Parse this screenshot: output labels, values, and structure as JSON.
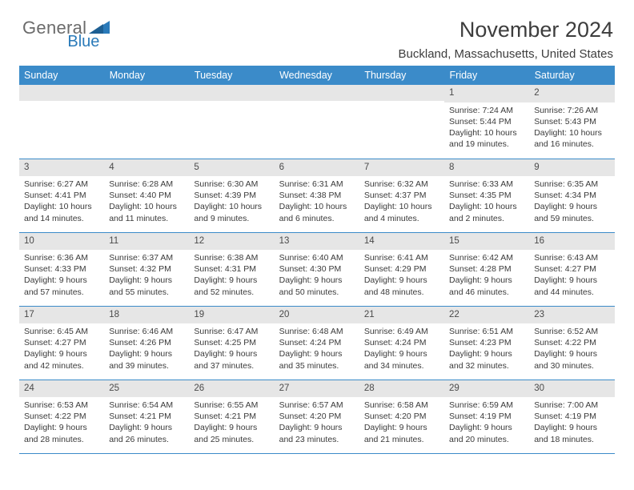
{
  "brand": {
    "part1": "General",
    "part2": "Blue"
  },
  "title": "November 2024",
  "location": "Buckland, Massachusetts, United States",
  "weekdays": [
    "Sunday",
    "Monday",
    "Tuesday",
    "Wednesday",
    "Thursday",
    "Friday",
    "Saturday"
  ],
  "styling": {
    "header_bg": "#3b8bc9",
    "header_fg": "#ffffff",
    "daynum_bg": "#e6e6e6",
    "border_color": "#3b8bc9",
    "body_fontsize": 10.5,
    "title_fontsize": 27
  },
  "weeks": [
    [
      null,
      null,
      null,
      null,
      null,
      {
        "n": "1",
        "sr": "7:24 AM",
        "ss": "5:44 PM",
        "dl": "10 hours and 19 minutes."
      },
      {
        "n": "2",
        "sr": "7:26 AM",
        "ss": "5:43 PM",
        "dl": "10 hours and 16 minutes."
      }
    ],
    [
      {
        "n": "3",
        "sr": "6:27 AM",
        "ss": "4:41 PM",
        "dl": "10 hours and 14 minutes."
      },
      {
        "n": "4",
        "sr": "6:28 AM",
        "ss": "4:40 PM",
        "dl": "10 hours and 11 minutes."
      },
      {
        "n": "5",
        "sr": "6:30 AM",
        "ss": "4:39 PM",
        "dl": "10 hours and 9 minutes."
      },
      {
        "n": "6",
        "sr": "6:31 AM",
        "ss": "4:38 PM",
        "dl": "10 hours and 6 minutes."
      },
      {
        "n": "7",
        "sr": "6:32 AM",
        "ss": "4:37 PM",
        "dl": "10 hours and 4 minutes."
      },
      {
        "n": "8",
        "sr": "6:33 AM",
        "ss": "4:35 PM",
        "dl": "10 hours and 2 minutes."
      },
      {
        "n": "9",
        "sr": "6:35 AM",
        "ss": "4:34 PM",
        "dl": "9 hours and 59 minutes."
      }
    ],
    [
      {
        "n": "10",
        "sr": "6:36 AM",
        "ss": "4:33 PM",
        "dl": "9 hours and 57 minutes."
      },
      {
        "n": "11",
        "sr": "6:37 AM",
        "ss": "4:32 PM",
        "dl": "9 hours and 55 minutes."
      },
      {
        "n": "12",
        "sr": "6:38 AM",
        "ss": "4:31 PM",
        "dl": "9 hours and 52 minutes."
      },
      {
        "n": "13",
        "sr": "6:40 AM",
        "ss": "4:30 PM",
        "dl": "9 hours and 50 minutes."
      },
      {
        "n": "14",
        "sr": "6:41 AM",
        "ss": "4:29 PM",
        "dl": "9 hours and 48 minutes."
      },
      {
        "n": "15",
        "sr": "6:42 AM",
        "ss": "4:28 PM",
        "dl": "9 hours and 46 minutes."
      },
      {
        "n": "16",
        "sr": "6:43 AM",
        "ss": "4:27 PM",
        "dl": "9 hours and 44 minutes."
      }
    ],
    [
      {
        "n": "17",
        "sr": "6:45 AM",
        "ss": "4:27 PM",
        "dl": "9 hours and 42 minutes."
      },
      {
        "n": "18",
        "sr": "6:46 AM",
        "ss": "4:26 PM",
        "dl": "9 hours and 39 minutes."
      },
      {
        "n": "19",
        "sr": "6:47 AM",
        "ss": "4:25 PM",
        "dl": "9 hours and 37 minutes."
      },
      {
        "n": "20",
        "sr": "6:48 AM",
        "ss": "4:24 PM",
        "dl": "9 hours and 35 minutes."
      },
      {
        "n": "21",
        "sr": "6:49 AM",
        "ss": "4:24 PM",
        "dl": "9 hours and 34 minutes."
      },
      {
        "n": "22",
        "sr": "6:51 AM",
        "ss": "4:23 PM",
        "dl": "9 hours and 32 minutes."
      },
      {
        "n": "23",
        "sr": "6:52 AM",
        "ss": "4:22 PM",
        "dl": "9 hours and 30 minutes."
      }
    ],
    [
      {
        "n": "24",
        "sr": "6:53 AM",
        "ss": "4:22 PM",
        "dl": "9 hours and 28 minutes."
      },
      {
        "n": "25",
        "sr": "6:54 AM",
        "ss": "4:21 PM",
        "dl": "9 hours and 26 minutes."
      },
      {
        "n": "26",
        "sr": "6:55 AM",
        "ss": "4:21 PM",
        "dl": "9 hours and 25 minutes."
      },
      {
        "n": "27",
        "sr": "6:57 AM",
        "ss": "4:20 PM",
        "dl": "9 hours and 23 minutes."
      },
      {
        "n": "28",
        "sr": "6:58 AM",
        "ss": "4:20 PM",
        "dl": "9 hours and 21 minutes."
      },
      {
        "n": "29",
        "sr": "6:59 AM",
        "ss": "4:19 PM",
        "dl": "9 hours and 20 minutes."
      },
      {
        "n": "30",
        "sr": "7:00 AM",
        "ss": "4:19 PM",
        "dl": "9 hours and 18 minutes."
      }
    ]
  ],
  "labels": {
    "sunrise": "Sunrise: ",
    "sunset": "Sunset: ",
    "daylight": "Daylight: "
  }
}
